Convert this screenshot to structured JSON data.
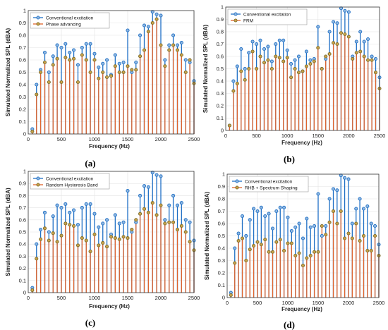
{
  "figure": {
    "panels": [
      "(a)",
      "(b)",
      "(c)",
      "(d)"
    ]
  },
  "colors": {
    "conventional": "#1f6fc5",
    "conventional_marker_fill": "#8fb7e0",
    "compare_stem": "#e0642c",
    "compare_marker_fill": "#c9a24a",
    "compare_marker_edge": "#7a6a2a",
    "grid": "#e3e3e3"
  },
  "chart_data": [
    {
      "type": "stem",
      "panel": "(a)",
      "xlabel": "Frequency (Hz)",
      "ylabel": "Simulated Normalized SPL (dBA)",
      "xlim": [
        0,
        2500
      ],
      "ylim": [
        0,
        1
      ],
      "xticks": [
        0,
        500,
        1000,
        1500,
        2000,
        2500
      ],
      "yticks": [
        0,
        0.1,
        0.2,
        0.3,
        0.4,
        0.5,
        0.6,
        0.7,
        0.8,
        0.9,
        1
      ],
      "grid": true,
      "legend_position": "top-left",
      "x": [
        62,
        125,
        187,
        250,
        312,
        375,
        437,
        500,
        562,
        625,
        687,
        750,
        812,
        875,
        937,
        1000,
        1062,
        1125,
        1187,
        1250,
        1312,
        1375,
        1437,
        1500,
        1562,
        1625,
        1687,
        1750,
        1812,
        1875,
        1937,
        2000,
        2062,
        2125,
        2187,
        2250,
        2312,
        2375,
        2437,
        2500
      ],
      "series": [
        {
          "name": "Conventional excitation",
          "values": [
            0.04,
            0.4,
            0.52,
            0.66,
            0.5,
            0.63,
            0.72,
            0.7,
            0.73,
            0.66,
            0.68,
            0.56,
            0.7,
            0.73,
            0.73,
            0.65,
            0.54,
            0.57,
            0.6,
            0.48,
            0.64,
            0.57,
            0.58,
            0.84,
            0.5,
            0.58,
            0.8,
            0.88,
            0.87,
            0.99,
            0.97,
            0.96,
            0.6,
            0.72,
            0.8,
            0.72,
            0.74,
            0.6,
            0.58,
            0.43
          ]
        },
        {
          "name": "Phase advancing",
          "values": [
            0.02,
            0.32,
            0.5,
            0.58,
            0.42,
            0.56,
            0.61,
            0.42,
            0.62,
            0.6,
            0.61,
            0.42,
            0.64,
            0.6,
            0.5,
            0.6,
            0.45,
            0.5,
            0.46,
            0.47,
            0.55,
            0.5,
            0.5,
            0.55,
            0.52,
            0.52,
            0.63,
            0.68,
            0.83,
            0.9,
            0.93,
            0.72,
            0.55,
            0.68,
            0.72,
            0.68,
            0.64,
            0.5,
            0.6,
            0.41
          ]
        }
      ]
    },
    {
      "type": "stem",
      "panel": "(b)",
      "xlabel": "Frequency (Hz)",
      "ylabel": "Simulated Normalized SPL (dBA)",
      "xlim": [
        0,
        2500
      ],
      "ylim": [
        0,
        1
      ],
      "xticks": [
        0,
        500,
        1000,
        1500,
        2000,
        2500
      ],
      "yticks": [
        0,
        0.1,
        0.2,
        0.3,
        0.4,
        0.5,
        0.6,
        0.7,
        0.8,
        0.9,
        1
      ],
      "grid": true,
      "legend_position": "top-left",
      "x": [
        62,
        125,
        187,
        250,
        312,
        375,
        437,
        500,
        562,
        625,
        687,
        750,
        812,
        875,
        937,
        1000,
        1062,
        1125,
        1187,
        1250,
        1312,
        1375,
        1437,
        1500,
        1562,
        1625,
        1687,
        1750,
        1812,
        1875,
        1937,
        2000,
        2062,
        2125,
        2187,
        2250,
        2312,
        2375,
        2437,
        2500
      ],
      "series": [
        {
          "name": "Conventional excitation",
          "values": [
            0.04,
            0.4,
            0.52,
            0.66,
            0.5,
            0.63,
            0.72,
            0.7,
            0.73,
            0.66,
            0.68,
            0.56,
            0.7,
            0.73,
            0.73,
            0.65,
            0.54,
            0.57,
            0.6,
            0.48,
            0.64,
            0.57,
            0.58,
            0.84,
            0.5,
            0.58,
            0.8,
            0.88,
            0.87,
            0.99,
            0.97,
            0.96,
            0.6,
            0.72,
            0.8,
            0.72,
            0.74,
            0.6,
            0.58,
            0.43
          ]
        },
        {
          "name": "FRM",
          "values": [
            0.04,
            0.32,
            0.38,
            0.48,
            0.41,
            0.5,
            0.64,
            0.5,
            0.6,
            0.55,
            0.57,
            0.5,
            0.6,
            0.59,
            0.56,
            0.59,
            0.43,
            0.5,
            0.47,
            0.48,
            0.52,
            0.54,
            0.56,
            0.67,
            0.5,
            0.6,
            0.62,
            0.71,
            0.7,
            0.79,
            0.78,
            0.76,
            0.58,
            0.63,
            0.64,
            0.6,
            0.57,
            0.57,
            0.47,
            0.34
          ]
        }
      ]
    },
    {
      "type": "stem",
      "panel": "(c)",
      "xlabel": "Frequency (Hz)",
      "ylabel": "Simulated Normalized SPL (dBA)",
      "xlim": [
        0,
        2500
      ],
      "ylim": [
        0,
        1
      ],
      "xticks": [
        0,
        500,
        1000,
        1500,
        2000,
        2500
      ],
      "yticks": [
        0,
        0.1,
        0.2,
        0.3,
        0.4,
        0.5,
        0.6,
        0.7,
        0.8,
        0.9,
        1
      ],
      "grid": true,
      "legend_position": "top-left",
      "x": [
        62,
        125,
        187,
        250,
        312,
        375,
        437,
        500,
        562,
        625,
        687,
        750,
        812,
        875,
        937,
        1000,
        1062,
        1125,
        1187,
        1250,
        1312,
        1375,
        1437,
        1500,
        1562,
        1625,
        1687,
        1750,
        1812,
        1875,
        1937,
        2000,
        2062,
        2125,
        2187,
        2250,
        2312,
        2375,
        2437,
        2500
      ],
      "series": [
        {
          "name": "Conventional excitation",
          "values": [
            0.04,
            0.4,
            0.52,
            0.66,
            0.5,
            0.63,
            0.72,
            0.7,
            0.73,
            0.66,
            0.68,
            0.56,
            0.7,
            0.73,
            0.73,
            0.65,
            0.54,
            0.57,
            0.6,
            0.48,
            0.64,
            0.57,
            0.58,
            0.84,
            0.5,
            0.58,
            0.8,
            0.88,
            0.87,
            0.99,
            0.97,
            0.96,
            0.6,
            0.72,
            0.8,
            0.72,
            0.74,
            0.6,
            0.58,
            0.43
          ]
        },
        {
          "name": "Random Hysteresis Band",
          "values": [
            0.02,
            0.28,
            0.44,
            0.53,
            0.43,
            0.49,
            0.42,
            0.47,
            0.57,
            0.56,
            0.55,
            0.39,
            0.45,
            0.43,
            0.34,
            0.48,
            0.39,
            0.41,
            0.38,
            0.46,
            0.45,
            0.44,
            0.46,
            0.45,
            0.52,
            0.6,
            0.65,
            0.69,
            0.66,
            0.74,
            0.64,
            0.72,
            0.57,
            0.58,
            0.58,
            0.52,
            0.55,
            0.5,
            0.42,
            0.35
          ]
        }
      ]
    },
    {
      "type": "stem",
      "panel": "(d)",
      "xlabel": "Frequency (Hz)",
      "ylabel": "Simulated Normalized SPL (dBA)",
      "xlim": [
        0,
        2500
      ],
      "ylim": [
        0,
        1
      ],
      "xticks": [
        0,
        500,
        1000,
        1500,
        2000,
        2500
      ],
      "yticks": [
        0,
        0.1,
        0.2,
        0.3,
        0.4,
        0.5,
        0.6,
        0.7,
        0.8,
        0.9,
        1
      ],
      "grid": true,
      "legend_position": "top-left",
      "x": [
        62,
        125,
        187,
        250,
        312,
        375,
        437,
        500,
        562,
        625,
        687,
        750,
        812,
        875,
        937,
        1000,
        1062,
        1125,
        1187,
        1250,
        1312,
        1375,
        1437,
        1500,
        1562,
        1625,
        1687,
        1750,
        1812,
        1875,
        1937,
        2000,
        2062,
        2125,
        2187,
        2250,
        2312,
        2375,
        2437,
        2500
      ],
      "series": [
        {
          "name": "Conventional excitation",
          "values": [
            0.04,
            0.4,
            0.52,
            0.66,
            0.5,
            0.63,
            0.72,
            0.7,
            0.73,
            0.66,
            0.68,
            0.56,
            0.7,
            0.73,
            0.73,
            0.65,
            0.54,
            0.57,
            0.6,
            0.48,
            0.64,
            0.57,
            0.58,
            0.84,
            0.5,
            0.58,
            0.8,
            0.88,
            0.87,
            0.99,
            0.97,
            0.96,
            0.6,
            0.72,
            0.8,
            0.72,
            0.74,
            0.6,
            0.58,
            0.43
          ]
        },
        {
          "name": "RHB + Spectrum Shaping",
          "values": [
            0.02,
            0.28,
            0.46,
            0.48,
            0.3,
            0.39,
            0.42,
            0.45,
            0.43,
            0.47,
            0.37,
            0.37,
            0.45,
            0.47,
            0.38,
            0.44,
            0.44,
            0.34,
            0.36,
            0.26,
            0.32,
            0.34,
            0.37,
            0.37,
            0.58,
            0.51,
            0.61,
            0.7,
            0.6,
            0.7,
            0.48,
            0.52,
            0.48,
            0.6,
            0.46,
            0.5,
            0.38,
            0.38,
            0.5,
            0.34
          ]
        }
      ]
    }
  ]
}
